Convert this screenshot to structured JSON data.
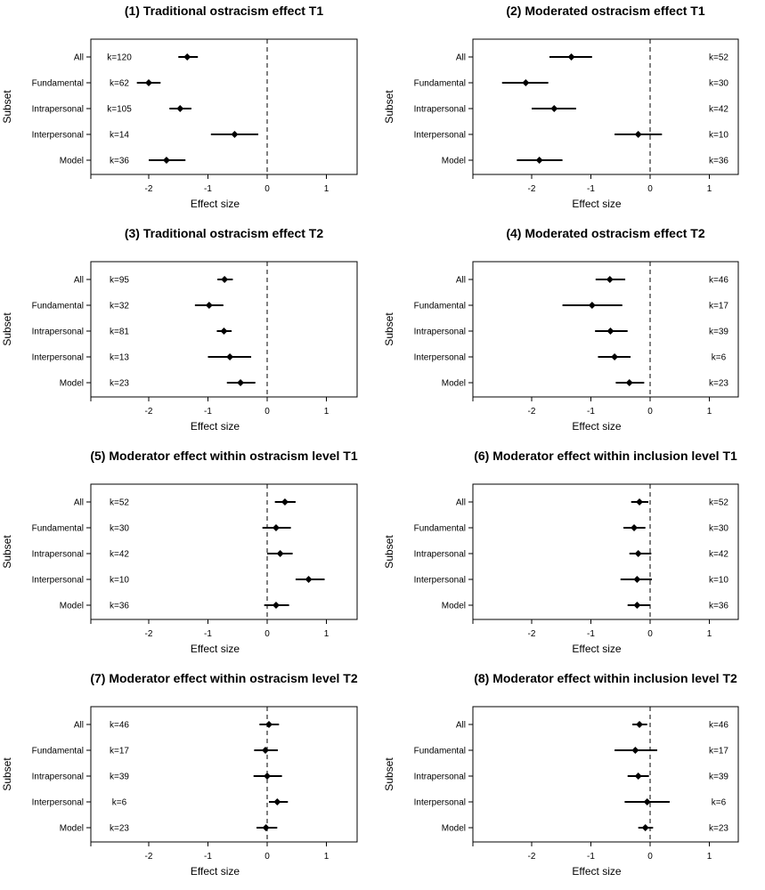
{
  "chart_data": [
    {
      "type": "forest",
      "title": "(1) Traditional ostracism effect T1",
      "xlabel": "Effect size",
      "ylabel": "Subset",
      "xlim": [
        -3,
        1.5
      ],
      "xticks": [
        -2,
        -1,
        0,
        1
      ],
      "xtick_labels": [
        "-2",
        "-1",
        "0",
        "1"
      ],
      "reference_line": 0,
      "k_position": "left",
      "categories": [
        "All",
        "Fundamental",
        "Intrapersonal",
        "Interpersonal",
        "Model"
      ],
      "estimates": [
        -1.35,
        -2.0,
        -1.47,
        -0.55,
        -1.7
      ],
      "lower": [
        -1.5,
        -2.2,
        -1.65,
        -0.95,
        -2.0
      ],
      "upper": [
        -1.17,
        -1.8,
        -1.28,
        -0.15,
        -1.38
      ],
      "k_labels": [
        "k=120",
        "k=62",
        "k=105",
        "k=14",
        "k=36"
      ]
    },
    {
      "type": "forest",
      "title": "(2) Moderated ostracism effect T1",
      "xlabel": "Effect size",
      "ylabel": "Subset",
      "xlim": [
        -2,
        1.5
      ],
      "xticks": [
        -2,
        -1,
        0,
        1
      ],
      "xtick_labels": [
        "-2",
        "-1",
        "0",
        "1"
      ],
      "reference_line": 0,
      "k_position": "right",
      "categories": [
        "All",
        "Fundamental",
        "Intrapersonal",
        "Interpersonal",
        "Model"
      ],
      "estimates": [
        -1.33,
        -2.1,
        -1.62,
        -0.2,
        -1.87
      ],
      "lower": [
        -1.7,
        -2.5,
        -2.0,
        -0.6,
        -2.25
      ],
      "upper": [
        -0.98,
        -1.72,
        -1.25,
        0.2,
        -1.48
      ],
      "k_labels": [
        "k=52",
        "k=30",
        "k=42",
        "k=10",
        "k=36"
      ]
    },
    {
      "type": "forest",
      "title": "(3) Traditional ostracism effect T2",
      "xlabel": "Effect size",
      "ylabel": "Subset",
      "xlim": [
        -3,
        1.5
      ],
      "xticks": [
        -2,
        -1,
        0,
        1
      ],
      "xtick_labels": [
        "-2",
        "-1",
        "0",
        "1"
      ],
      "reference_line": 0,
      "k_position": "left",
      "categories": [
        "All",
        "Fundamental",
        "Intrapersonal",
        "Interpersonal",
        "Model"
      ],
      "estimates": [
        -0.72,
        -0.98,
        -0.73,
        -0.63,
        -0.45
      ],
      "lower": [
        -0.84,
        -1.22,
        -0.85,
        -1.0,
        -0.68
      ],
      "upper": [
        -0.58,
        -0.74,
        -0.6,
        -0.27,
        -0.2
      ],
      "k_labels": [
        "k=95",
        "k=32",
        "k=81",
        "k=13",
        "k=23"
      ]
    },
    {
      "type": "forest",
      "title": "(4) Moderated ostracism effect T2",
      "xlabel": "Effect size",
      "ylabel": "Subset",
      "xlim": [
        -2,
        1.5
      ],
      "xticks": [
        -2,
        -1,
        0,
        1
      ],
      "xtick_labels": [
        "-2",
        "-1",
        "0",
        "1"
      ],
      "reference_line": 0,
      "k_position": "right",
      "categories": [
        "All",
        "Fundamental",
        "Intrapersonal",
        "Interpersonal",
        "Model"
      ],
      "estimates": [
        -0.68,
        -0.98,
        -0.67,
        -0.6,
        -0.35
      ],
      "lower": [
        -0.92,
        -1.48,
        -0.93,
        -0.88,
        -0.58
      ],
      "upper": [
        -0.42,
        -0.47,
        -0.38,
        -0.33,
        -0.1
      ],
      "k_labels": [
        "k=46",
        "k=17",
        "k=39",
        "k=6",
        "k=23"
      ]
    },
    {
      "type": "forest",
      "title": "(5) Moderator effect within ostracism level T1",
      "xlabel": "Effect size",
      "ylabel": "Subset",
      "xlim": [
        -3,
        1.5
      ],
      "xticks": [
        -2,
        -1,
        0,
        1
      ],
      "xtick_labels": [
        "-2",
        "-1",
        "0",
        "1"
      ],
      "reference_line": 0,
      "k_position": "left",
      "categories": [
        "All",
        "Fundamental",
        "Intrapersonal",
        "Interpersonal",
        "Model"
      ],
      "estimates": [
        0.3,
        0.15,
        0.22,
        0.7,
        0.15
      ],
      "lower": [
        0.13,
        -0.08,
        0.0,
        0.48,
        -0.05
      ],
      "upper": [
        0.48,
        0.4,
        0.43,
        0.97,
        0.37
      ],
      "k_labels": [
        "k=52",
        "k=30",
        "k=42",
        "k=10",
        "k=36"
      ]
    },
    {
      "type": "forest",
      "title": "(6) Moderator effect within inclusion level T1",
      "xlabel": "Effect size",
      "ylabel": "Subset",
      "xlim": [
        -2,
        1.5
      ],
      "xticks": [
        -2,
        -1,
        0,
        1
      ],
      "xtick_labels": [
        "-2",
        "-1",
        "0",
        "1"
      ],
      "reference_line": 0,
      "k_position": "right",
      "categories": [
        "All",
        "Fundamental",
        "Intrapersonal",
        "Interpersonal",
        "Model"
      ],
      "estimates": [
        -0.18,
        -0.27,
        -0.2,
        -0.22,
        -0.22
      ],
      "lower": [
        -0.32,
        -0.45,
        -0.35,
        -0.5,
        -0.38
      ],
      "upper": [
        -0.03,
        -0.08,
        0.02,
        0.03,
        0.0
      ],
      "k_labels": [
        "k=52",
        "k=30",
        "k=42",
        "k=10",
        "k=36"
      ]
    },
    {
      "type": "forest",
      "title": "(7) Moderator effect within ostracism level T2",
      "xlabel": "Effect size",
      "ylabel": "Subset",
      "xlim": [
        -3,
        1.5
      ],
      "xticks": [
        -2,
        -1,
        0,
        1
      ],
      "xtick_labels": [
        "-2",
        "-1",
        "0",
        "1"
      ],
      "reference_line": 0,
      "k_position": "left",
      "categories": [
        "All",
        "Fundamental",
        "Intrapersonal",
        "Interpersonal",
        "Model"
      ],
      "estimates": [
        0.03,
        -0.03,
        0.0,
        0.17,
        -0.02
      ],
      "lower": [
        -0.13,
        -0.22,
        -0.23,
        0.03,
        -0.18
      ],
      "upper": [
        0.2,
        0.18,
        0.25,
        0.35,
        0.17
      ],
      "k_labels": [
        "k=46",
        "k=17",
        "k=39",
        "k=6",
        "k=23"
      ]
    },
    {
      "type": "forest",
      "title": "(8) Moderator effect within inclusion level T2",
      "xlabel": "Effect size",
      "ylabel": "Subset",
      "xlim": [
        -2,
        1.5
      ],
      "xticks": [
        -2,
        -1,
        0,
        1
      ],
      "xtick_labels": [
        "-2",
        "-1",
        "0",
        "1"
      ],
      "reference_line": 0,
      "k_position": "right",
      "categories": [
        "All",
        "Fundamental",
        "Intrapersonal",
        "Interpersonal",
        "Model"
      ],
      "estimates": [
        -0.18,
        -0.25,
        -0.2,
        -0.05,
        -0.08
      ],
      "lower": [
        -0.3,
        -0.6,
        -0.38,
        -0.43,
        -0.2
      ],
      "upper": [
        -0.05,
        0.12,
        -0.02,
        0.33,
        0.05
      ],
      "k_labels": [
        "k=46",
        "k=17",
        "k=39",
        "k=6",
        "k=23"
      ]
    }
  ]
}
